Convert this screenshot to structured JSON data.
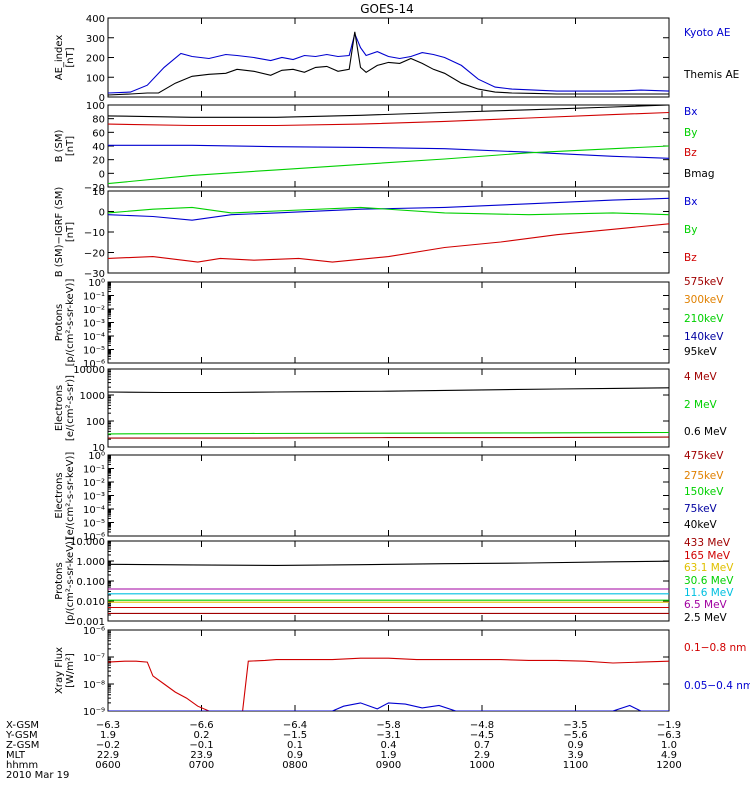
{
  "title": "GOES-14",
  "colors": {
    "black": "#000000",
    "blue": "#0000d0",
    "green": "#00d000",
    "red": "#d00000",
    "darkred": "#a00000",
    "orange": "#e08000",
    "yellow": "#e0c000",
    "cyan": "#00c0e0",
    "purple": "#a000a0",
    "navy": "#0000a0"
  },
  "chart_data": [
    {
      "type": "line",
      "ylabel": "AE_index [nT]",
      "ylim": [
        0,
        400
      ],
      "yscale": "linear",
      "yticks": [
        "0",
        "100",
        "200",
        "300",
        "400"
      ],
      "legend": [
        {
          "label": "Kyoto AE",
          "color": "blue"
        },
        {
          "label": "Themis AE",
          "color": "black"
        }
      ],
      "series": [
        {
          "name": "Kyoto AE",
          "color": "blue",
          "x": [
            0,
            0.04,
            0.07,
            0.1,
            0.13,
            0.15,
            0.18,
            0.21,
            0.23,
            0.26,
            0.29,
            0.31,
            0.33,
            0.35,
            0.37,
            0.39,
            0.41,
            0.43,
            0.44,
            0.45,
            0.46,
            0.48,
            0.5,
            0.52,
            0.54,
            0.56,
            0.58,
            0.6,
            0.63,
            0.66,
            0.69,
            0.72,
            0.76,
            0.8,
            0.85,
            0.9,
            0.95,
            1
          ],
          "y": [
            20,
            25,
            60,
            150,
            220,
            205,
            195,
            215,
            210,
            200,
            185,
            200,
            190,
            210,
            205,
            215,
            205,
            210,
            320,
            250,
            210,
            230,
            205,
            195,
            205,
            225,
            215,
            200,
            160,
            90,
            50,
            40,
            35,
            30,
            30,
            30,
            35,
            30
          ]
        },
        {
          "name": "Themis AE",
          "color": "black",
          "x": [
            0,
            0.04,
            0.07,
            0.09,
            0.12,
            0.15,
            0.18,
            0.21,
            0.23,
            0.26,
            0.29,
            0.31,
            0.33,
            0.35,
            0.37,
            0.39,
            0.41,
            0.43,
            0.44,
            0.45,
            0.46,
            0.48,
            0.5,
            0.52,
            0.54,
            0.56,
            0.58,
            0.6,
            0.63,
            0.66,
            0.69,
            0.72,
            0.76,
            0.8,
            0.85,
            0.9,
            0.95,
            1
          ],
          "y": [
            10,
            15,
            20,
            20,
            70,
            105,
            115,
            120,
            140,
            130,
            110,
            135,
            140,
            125,
            150,
            155,
            130,
            140,
            330,
            150,
            125,
            160,
            175,
            170,
            195,
            170,
            140,
            120,
            70,
            40,
            25,
            20,
            18,
            15,
            15,
            15,
            15,
            15
          ]
        }
      ]
    },
    {
      "type": "line",
      "ylabel": "B (SM) [nT]",
      "ylim": [
        -20,
        100
      ],
      "yscale": "linear",
      "yticks": [
        "−20",
        "0",
        "20",
        "40",
        "60",
        "80",
        "100"
      ],
      "legend": [
        {
          "label": "Bx",
          "color": "blue"
        },
        {
          "label": "By",
          "color": "green"
        },
        {
          "label": "Bz",
          "color": "red"
        },
        {
          "label": "Bmag",
          "color": "black"
        }
      ],
      "series": [
        {
          "name": "Bx",
          "color": "blue",
          "x": [
            0,
            0.15,
            0.3,
            0.45,
            0.6,
            0.75,
            0.9,
            1
          ],
          "y": [
            41,
            41,
            39,
            38,
            36,
            31,
            25,
            22
          ]
        },
        {
          "name": "By",
          "color": "green",
          "x": [
            0,
            0.15,
            0.3,
            0.45,
            0.6,
            0.75,
            0.9,
            1
          ],
          "y": [
            -15,
            -3,
            5,
            13,
            21,
            30,
            36,
            40
          ]
        },
        {
          "name": "Bz",
          "color": "red",
          "x": [
            0,
            0.15,
            0.3,
            0.45,
            0.6,
            0.75,
            0.9,
            1
          ],
          "y": [
            72,
            70,
            70,
            72,
            76,
            81,
            86,
            89
          ]
        },
        {
          "name": "Bmag",
          "color": "black",
          "x": [
            0,
            0.15,
            0.3,
            0.45,
            0.6,
            0.75,
            0.9,
            1
          ],
          "y": [
            84,
            82,
            82,
            85,
            89,
            93,
            97,
            100
          ]
        }
      ]
    },
    {
      "type": "line",
      "ylabel": "B (SM)−IGRF (SM) [nT]",
      "ylim": [
        -35,
        10
      ],
      "yscale": "linear",
      "yticks": [
        "−30",
        "−20",
        "−10",
        "0",
        "10"
      ],
      "legend": [
        {
          "label": "Bx",
          "color": "blue"
        },
        {
          "label": "By",
          "color": "green"
        },
        {
          "label": "Bz",
          "color": "red"
        }
      ],
      "series": [
        {
          "name": "Bx",
          "color": "blue",
          "x": [
            0,
            0.08,
            0.15,
            0.22,
            0.3,
            0.45,
            0.6,
            0.75,
            0.9,
            1
          ],
          "y": [
            -3,
            -4,
            -6,
            -3,
            -2,
            0,
            1,
            3,
            5,
            6
          ]
        },
        {
          "name": "By",
          "color": "green",
          "x": [
            0,
            0.08,
            0.15,
            0.22,
            0.3,
            0.45,
            0.6,
            0.75,
            0.9,
            1
          ],
          "y": [
            -2,
            0,
            1,
            -2,
            -1,
            1,
            -2,
            -3,
            -2,
            -3
          ]
        },
        {
          "name": "Bz",
          "color": "red",
          "x": [
            0,
            0.08,
            0.16,
            0.2,
            0.26,
            0.34,
            0.4,
            0.5,
            0.6,
            0.7,
            0.8,
            0.9,
            1
          ],
          "y": [
            -27,
            -26,
            -29,
            -27,
            -28,
            -27,
            -29,
            -26,
            -21,
            -18,
            -14,
            -11,
            -8
          ]
        }
      ]
    },
    {
      "type": "line",
      "ylabel": "Protons [p/(cm²-s-sr-keV)]",
      "ylim": [
        -6,
        0
      ],
      "yscale": "log",
      "yticks": [
        "10⁻⁶",
        "10⁻⁵",
        "10⁻⁴",
        "10⁻³",
        "10⁻²",
        "10⁻¹",
        "10⁰"
      ],
      "legend": [
        {
          "label": "575keV",
          "color": "darkred"
        },
        {
          "label": "300keV",
          "color": "orange"
        },
        {
          "label": "210keV",
          "color": "green"
        },
        {
          "label": "140keV",
          "color": "navy"
        },
        {
          "label": "95keV",
          "color": "black"
        }
      ],
      "series": []
    },
    {
      "type": "line",
      "ylabel": "Electrons [e/(cm²-s-sr)]",
      "ylim": [
        1,
        4
      ],
      "yscale": "log",
      "yticks": [
        "10",
        "100",
        "1000",
        "10000"
      ],
      "legend": [
        {
          "label": "4 MeV",
          "color": "darkred"
        },
        {
          "label": "2 MeV",
          "color": "green"
        },
        {
          "label": "0.6 MeV",
          "color": "black"
        }
      ],
      "series": [
        {
          "name": "0.6 MeV",
          "color": "black",
          "x": [
            0,
            0.1,
            0.2,
            0.3,
            0.4,
            0.5,
            0.6,
            0.7,
            0.8,
            0.9,
            1
          ],
          "y": [
            1300,
            1250,
            1250,
            1300,
            1350,
            1400,
            1500,
            1600,
            1700,
            1800,
            1900
          ]
        },
        {
          "name": "2 MeV",
          "color": "green",
          "x": [
            0,
            0.25,
            0.5,
            0.75,
            1
          ],
          "y": [
            32,
            33,
            34,
            35,
            36
          ]
        },
        {
          "name": "4 MeV",
          "color": "darkred",
          "x": [
            0,
            0.25,
            0.5,
            0.75,
            1
          ],
          "y": [
            22,
            22,
            23,
            23,
            24
          ]
        }
      ]
    },
    {
      "type": "line",
      "ylabel": "Electrons [e/(cm²-s-sr-keV)]",
      "ylim": [
        -6,
        0
      ],
      "yscale": "log",
      "yticks": [
        "10⁻⁶",
        "10⁻⁵",
        "10⁻⁴",
        "10⁻³",
        "10⁻²",
        "10⁻¹",
        "10⁰"
      ],
      "legend": [
        {
          "label": "475keV",
          "color": "darkred"
        },
        {
          "label": "275keV",
          "color": "orange"
        },
        {
          "label": "150keV",
          "color": "green"
        },
        {
          "label": "75keV",
          "color": "navy"
        },
        {
          "label": "40keV",
          "color": "black"
        }
      ],
      "series": []
    },
    {
      "type": "line",
      "ylabel": "Protons [p/(cm²-s-sr-keV)]",
      "ylim": [
        -3,
        2
      ],
      "yscale": "log",
      "yticks": [
        "0.001",
        "0.010",
        "0.100",
        "1.000",
        "10.000"
      ],
      "legend": [
        {
          "label": "433 MeV",
          "color": "darkred"
        },
        {
          "label": "165 MeV",
          "color": "red"
        },
        {
          "label": "63.1 MeV",
          "color": "yellow"
        },
        {
          "label": "30.6 MeV",
          "color": "green"
        },
        {
          "label": "11.6 MeV",
          "color": "cyan"
        },
        {
          "label": "6.5 MeV",
          "color": "purple"
        },
        {
          "label": "2.5 MeV",
          "color": "black"
        }
      ],
      "series": [
        {
          "name": "2.5 MeV",
          "color": "black",
          "x": [
            0,
            0.15,
            0.3,
            0.45,
            0.6,
            0.75,
            0.9,
            1
          ],
          "y": [
            3.5,
            3.2,
            3.0,
            3.3,
            3.8,
            4.2,
            5.0,
            5.5
          ]
        },
        {
          "name": "6.5 MeV",
          "color": "purple",
          "x": [
            0,
            0.5,
            1
          ],
          "y": [
            0.1,
            0.1,
            0.1
          ]
        },
        {
          "name": "11.6 MeV",
          "color": "cyan",
          "x": [
            0,
            0.5,
            1
          ],
          "y": [
            0.05,
            0.05,
            0.05
          ]
        },
        {
          "name": "30.6 MeV",
          "color": "green",
          "x": [
            0,
            0.5,
            1
          ],
          "y": [
            0.02,
            0.02,
            0.02
          ]
        },
        {
          "name": "63.1 MeV",
          "color": "yellow",
          "x": [
            0,
            0.5,
            1
          ],
          "y": [
            0.015,
            0.015,
            0.015
          ]
        },
        {
          "name": "165 MeV",
          "color": "red",
          "x": [
            0,
            0.5,
            1
          ],
          "y": [
            0.007,
            0.007,
            0.007
          ]
        },
        {
          "name": "433 MeV",
          "color": "darkred",
          "x": [
            0,
            0.5,
            1
          ],
          "y": [
            0.003,
            0.003,
            0.003
          ]
        }
      ]
    },
    {
      "type": "line",
      "ylabel": "Xray Flux [W/m²]",
      "ylim": [
        -9,
        -6
      ],
      "yscale": "log",
      "yticks": [
        "10⁻⁹",
        "10⁻⁸",
        "10⁻⁷",
        "10⁻⁶"
      ],
      "legend": [
        {
          "label": "0.1−0.8 nm",
          "color": "red"
        },
        {
          "label": "0.05−0.4 nm",
          "color": "blue"
        }
      ],
      "series": [
        {
          "name": "0.1−0.8 nm",
          "color": "red",
          "x": [
            0,
            0.03,
            0.05,
            0.07,
            0.08,
            0.1,
            0.12,
            0.14,
            0.16,
            0.18,
            0.2,
            0.22,
            0.24,
            0.25,
            0.28,
            0.3,
            0.35,
            0.4,
            0.45,
            0.5,
            0.55,
            0.6,
            0.65,
            0.7,
            0.75,
            0.8,
            0.85,
            0.9,
            0.95,
            1
          ],
          "y": [
            6.5e-08,
            7e-08,
            7e-08,
            6.5e-08,
            2e-08,
            1e-08,
            5e-09,
            3e-09,
            1.5e-09,
            1e-09,
            1e-09,
            1e-09,
            1e-09,
            7e-08,
            7.5e-08,
            8e-08,
            8e-08,
            8e-08,
            9e-08,
            9e-08,
            8e-08,
            8e-08,
            8e-08,
            8e-08,
            7.5e-08,
            7.5e-08,
            7e-08,
            6e-08,
            6.5e-08,
            7e-08
          ]
        },
        {
          "name": "0.05−0.4 nm",
          "color": "blue",
          "x": [
            0,
            0.36,
            0.4,
            0.42,
            0.45,
            0.48,
            0.5,
            0.53,
            0.56,
            0.59,
            0.62,
            0.65,
            0.7,
            0.8,
            0.9,
            0.93,
            0.95,
            1
          ],
          "y": [
            1e-09,
            1e-09,
            1e-09,
            1.5e-09,
            2e-09,
            1.2e-09,
            2e-09,
            1.8e-09,
            1.3e-09,
            1.6e-09,
            1e-09,
            1e-09,
            1e-09,
            1e-09,
            1e-09,
            1.6e-09,
            1e-09,
            1e-09
          ]
        }
      ]
    }
  ],
  "xaxis": {
    "rows": [
      {
        "label": "X-GSM",
        "values": [
          "−6.3",
          "−6.6",
          "−6.4",
          "−5.8",
          "−4.8",
          "−3.5",
          "−1.9"
        ]
      },
      {
        "label": "Y-GSM",
        "values": [
          "1.9",
          "0.2",
          "−1.5",
          "−3.1",
          "−4.5",
          "−5.6",
          "−6.3"
        ]
      },
      {
        "label": "Z-GSM",
        "values": [
          "−0.2",
          "−0.1",
          "0.1",
          "0.4",
          "0.7",
          "0.9",
          "1.0"
        ]
      },
      {
        "label": "MLT",
        "values": [
          "22.9",
          "23.9",
          "0.9",
          "1.9",
          "2.9",
          "3.9",
          "4.9"
        ]
      },
      {
        "label": "hhmm",
        "values": [
          "0600",
          "0700",
          "0800",
          "0900",
          "1000",
          "1100",
          "1200"
        ]
      }
    ],
    "date": "2010 Mar 19"
  }
}
